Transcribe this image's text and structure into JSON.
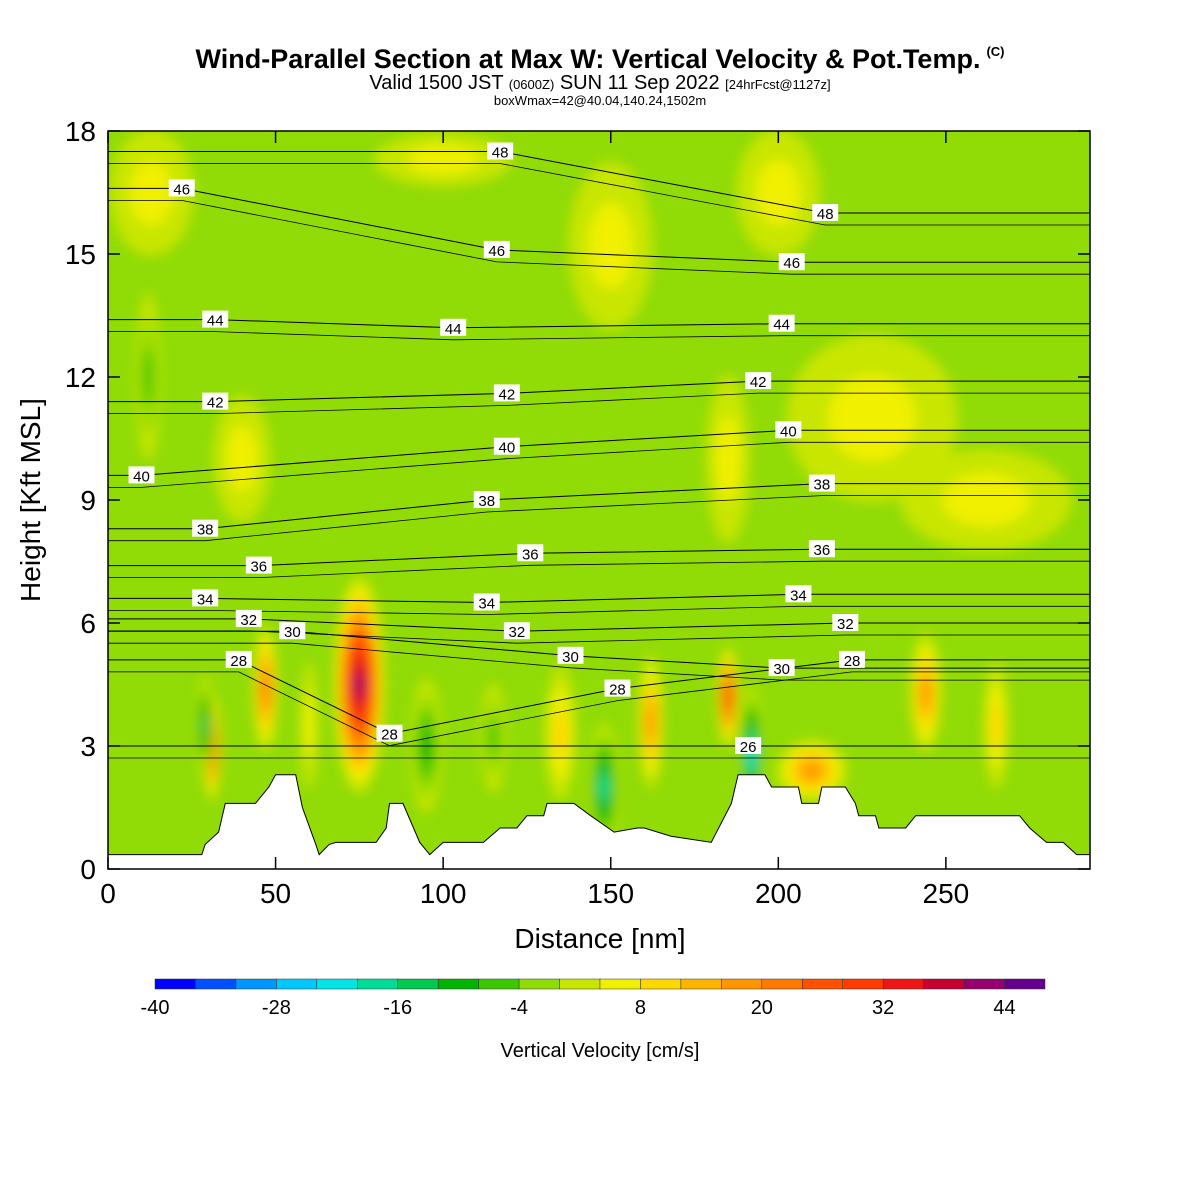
{
  "header": {
    "title": "Wind-Parallel Section at Max W: Vertical Velocity & Pot.Temp.",
    "copyright": "(C)",
    "valid_prefix": "Valid 1500 JST",
    "valid_utc": "(0600Z)",
    "valid_date": "SUN 11 Sep 2022",
    "forecast": "[24hrFcst@1127z]",
    "box_info": "boxWmax=42@40.04,140.24,1502m"
  },
  "colors": {
    "background": "#91db06",
    "terrain": "#ffffff",
    "contour": "#000000"
  },
  "chart_data": {
    "type": "heatmap",
    "xlabel": "Distance [nm]",
    "ylabel": "Height [Kft MSL]",
    "xlim": [
      0,
      293
    ],
    "ylim": [
      0,
      18
    ],
    "xticks": [
      0,
      50,
      100,
      150,
      200,
      250
    ],
    "yticks": [
      0,
      3,
      6,
      9,
      12,
      15,
      18
    ],
    "colorbar": {
      "label": "Vertical Velocity [cm/s]",
      "ticks": [
        -40,
        -28,
        -16,
        -4,
        8,
        20,
        32,
        44
      ],
      "levels": [
        -40,
        -36,
        -32,
        -28,
        -24,
        -20,
        -16,
        -12,
        -8,
        -4,
        0,
        4,
        8,
        12,
        16,
        20,
        24,
        28,
        32,
        36,
        40,
        44,
        48
      ],
      "colors": [
        "#0000ff",
        "#0050ff",
        "#0096ff",
        "#00c8ff",
        "#00e6e6",
        "#00dc96",
        "#00c850",
        "#00b400",
        "#3cc800",
        "#91db06",
        "#c8e600",
        "#f0f000",
        "#ffd700",
        "#ffb400",
        "#ff9600",
        "#ff7800",
        "#ff5000",
        "#ff3c00",
        "#f01414",
        "#c80032",
        "#96006e",
        "#64008c"
      ]
    },
    "velocity_cells": [
      {
        "x": 75,
        "y": 4.5,
        "rx": 7,
        "ry": 2.6,
        "value": 40
      },
      {
        "x": 31,
        "y": 3.0,
        "rx": 2,
        "ry": 1.3,
        "value": 28
      },
      {
        "x": 47,
        "y": 4.4,
        "rx": 3,
        "ry": 1.5,
        "value": 20
      },
      {
        "x": 185,
        "y": 4.2,
        "rx": 2.5,
        "ry": 1.2,
        "value": 28
      },
      {
        "x": 244,
        "y": 4.3,
        "rx": 4,
        "ry": 1.4,
        "value": 16
      },
      {
        "x": 162,
        "y": 3.6,
        "rx": 3,
        "ry": 1.6,
        "value": 16
      },
      {
        "x": 210,
        "y": 2.4,
        "rx": 10,
        "ry": 0.7,
        "value": 16
      },
      {
        "x": 192,
        "y": 2.8,
        "rx": 3,
        "ry": 1.6,
        "value": -24
      },
      {
        "x": 148,
        "y": 2.0,
        "rx": 4,
        "ry": 1.5,
        "value": -20
      },
      {
        "x": 29,
        "y": 3.5,
        "rx": 2,
        "ry": 1.2,
        "value": -16
      },
      {
        "x": 95,
        "y": 3.0,
        "rx": 4,
        "ry": 1.6,
        "value": -12
      },
      {
        "x": 115,
        "y": 3.2,
        "rx": 3,
        "ry": 1.3,
        "value": -8
      },
      {
        "x": 135,
        "y": 3.3,
        "rx": 4,
        "ry": 1.6,
        "value": 8
      },
      {
        "x": 265,
        "y": 3.5,
        "rx": 3,
        "ry": 1.5,
        "value": 8
      },
      {
        "x": 60,
        "y": 3.5,
        "rx": 2,
        "ry": 1.5,
        "value": 4
      },
      {
        "x": 12,
        "y": 12,
        "rx": 3,
        "ry": 2,
        "value": -8
      },
      {
        "x": 200,
        "y": 16.5,
        "rx": 12,
        "ry": 1.5,
        "value": 4
      },
      {
        "x": 228,
        "y": 11,
        "rx": 25,
        "ry": 2,
        "value": 4
      },
      {
        "x": 262,
        "y": 9,
        "rx": 25,
        "ry": 1.2,
        "value": 4
      },
      {
        "x": 13,
        "y": 16.5,
        "rx": 12,
        "ry": 1.5,
        "value": 4
      },
      {
        "x": 100,
        "y": 17.3,
        "rx": 20,
        "ry": 0.6,
        "value": 4
      },
      {
        "x": 40,
        "y": 10,
        "rx": 8,
        "ry": 1.5,
        "value": 4
      },
      {
        "x": 185,
        "y": 10,
        "rx": 6,
        "ry": 2,
        "value": 4
      },
      {
        "x": 150,
        "y": 15.2,
        "rx": 12,
        "ry": 2,
        "value": 4
      }
    ],
    "theta_contour_labels": [
      {
        "x": 117,
        "y": 17.5,
        "label": "48"
      },
      {
        "x": 214,
        "y": 16.0,
        "label": "48"
      },
      {
        "x": 22,
        "y": 16.6,
        "label": "46"
      },
      {
        "x": 116,
        "y": 15.1,
        "label": "46"
      },
      {
        "x": 204,
        "y": 14.8,
        "label": "46"
      },
      {
        "x": 32,
        "y": 13.4,
        "label": "44"
      },
      {
        "x": 103,
        "y": 13.2,
        "label": "44"
      },
      {
        "x": 201,
        "y": 13.3,
        "label": "44"
      },
      {
        "x": 32,
        "y": 11.4,
        "label": "42"
      },
      {
        "x": 119,
        "y": 11.6,
        "label": "42"
      },
      {
        "x": 194,
        "y": 11.9,
        "label": "42"
      },
      {
        "x": 10,
        "y": 9.6,
        "label": "40"
      },
      {
        "x": 119,
        "y": 10.3,
        "label": "40"
      },
      {
        "x": 203,
        "y": 10.7,
        "label": "40"
      },
      {
        "x": 29,
        "y": 8.3,
        "label": "38"
      },
      {
        "x": 113,
        "y": 9.0,
        "label": "38"
      },
      {
        "x": 213,
        "y": 9.4,
        "label": "38"
      },
      {
        "x": 45,
        "y": 7.4,
        "label": "36"
      },
      {
        "x": 126,
        "y": 7.7,
        "label": "36"
      },
      {
        "x": 213,
        "y": 7.8,
        "label": "36"
      },
      {
        "x": 29,
        "y": 6.6,
        "label": "34"
      },
      {
        "x": 113,
        "y": 6.5,
        "label": "34"
      },
      {
        "x": 206,
        "y": 6.7,
        "label": "34"
      },
      {
        "x": 42,
        "y": 6.1,
        "label": "32"
      },
      {
        "x": 122,
        "y": 5.8,
        "label": "32"
      },
      {
        "x": 220,
        "y": 6.0,
        "label": "32"
      },
      {
        "x": 55,
        "y": 5.8,
        "label": "30"
      },
      {
        "x": 138,
        "y": 5.2,
        "label": "30"
      },
      {
        "x": 201,
        "y": 4.9,
        "label": "30"
      },
      {
        "x": 39,
        "y": 5.1,
        "label": "28"
      },
      {
        "x": 84,
        "y": 3.3,
        "label": "28"
      },
      {
        "x": 152,
        "y": 4.4,
        "label": "28"
      },
      {
        "x": 222,
        "y": 5.1,
        "label": "28"
      },
      {
        "x": 191,
        "y": 3.0,
        "label": "26"
      }
    ],
    "terrain": [
      [
        0,
        0.35
      ],
      [
        28,
        0.35
      ],
      [
        29,
        0.6
      ],
      [
        33,
        0.9
      ],
      [
        35,
        1.6
      ],
      [
        44,
        1.6
      ],
      [
        48,
        2.0
      ],
      [
        50,
        2.3
      ],
      [
        56,
        2.3
      ],
      [
        58,
        1.5
      ],
      [
        62,
        0.6
      ],
      [
        63,
        0.35
      ],
      [
        66,
        0.6
      ],
      [
        68,
        0.65
      ],
      [
        80,
        0.65
      ],
      [
        83,
        1.0
      ],
      [
        84,
        1.6
      ],
      [
        88,
        1.6
      ],
      [
        93,
        0.65
      ],
      [
        96,
        0.35
      ],
      [
        100,
        0.65
      ],
      [
        112,
        0.65
      ],
      [
        117,
        1.0
      ],
      [
        122,
        1.0
      ],
      [
        125,
        1.3
      ],
      [
        130,
        1.3
      ],
      [
        131,
        1.6
      ],
      [
        139,
        1.6
      ],
      [
        144,
        1.3
      ],
      [
        151,
        0.9
      ],
      [
        158,
        1.0
      ],
      [
        160,
        1.0
      ],
      [
        168,
        0.8
      ],
      [
        180,
        0.65
      ],
      [
        186,
        1.6
      ],
      [
        188,
        2.3
      ],
      [
        196,
        2.3
      ],
      [
        198,
        2.0
      ],
      [
        206,
        2.0
      ],
      [
        207,
        1.6
      ],
      [
        212,
        1.6
      ],
      [
        213,
        2.0
      ],
      [
        220,
        2.0
      ],
      [
        223,
        1.6
      ],
      [
        224,
        1.3
      ],
      [
        229,
        1.3
      ],
      [
        230,
        1.0
      ],
      [
        238,
        1.0
      ],
      [
        241,
        1.3
      ],
      [
        272,
        1.3
      ],
      [
        275,
        1.0
      ],
      [
        280,
        0.65
      ],
      [
        285,
        0.65
      ],
      [
        289,
        0.35
      ],
      [
        293,
        0.35
      ]
    ]
  }
}
